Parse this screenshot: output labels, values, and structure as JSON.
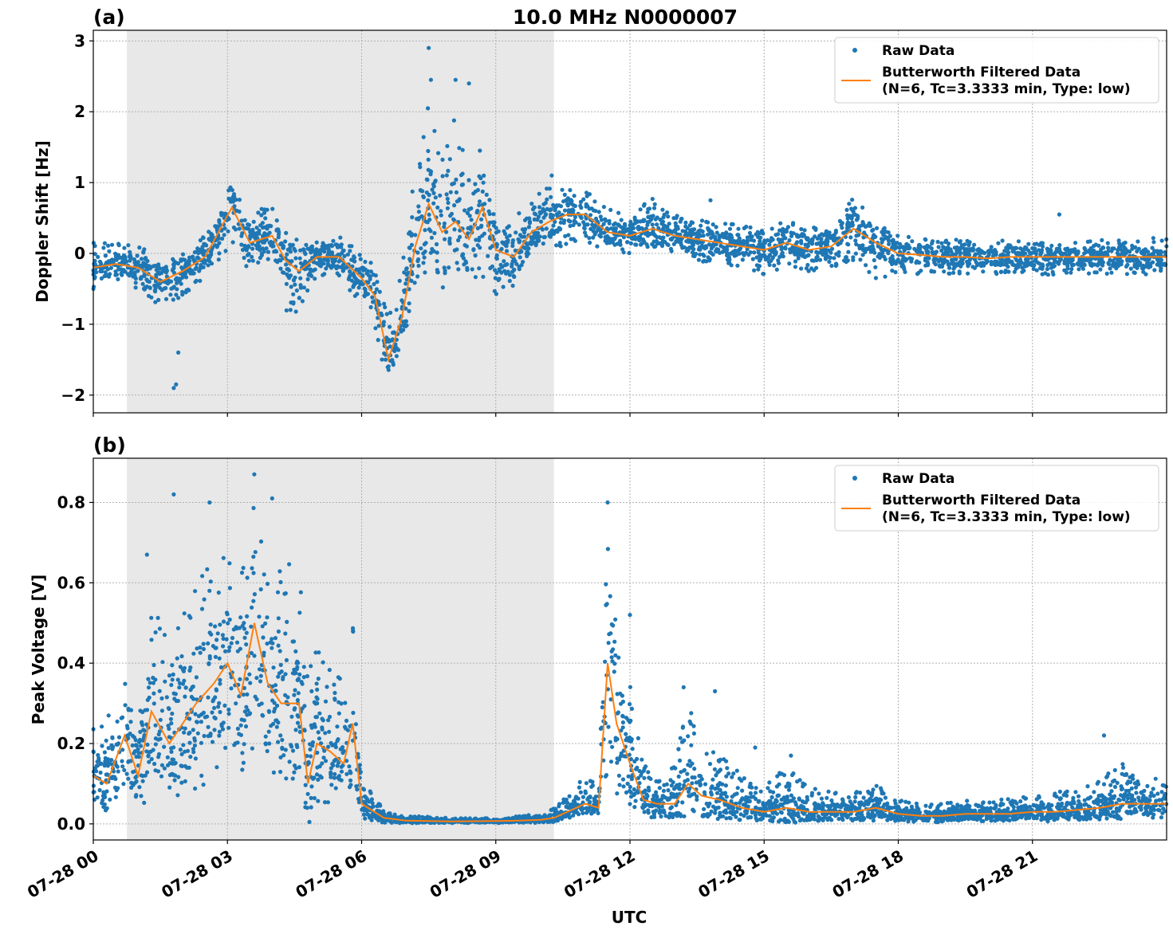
{
  "figure": {
    "suptitle": "10.0 MHz N0000007",
    "xlabel": "UTC",
    "x_tick_labels": [
      "07-28 00",
      "07-28 03",
      "07-28 06",
      "07-28 09",
      "07-28 12",
      "07-28 15",
      "07-28 18",
      "07-28 21"
    ]
  },
  "chart_data": [
    {
      "type": "scatter",
      "panel_label": "(a)",
      "ylabel": "Doppler Shift [Hz]",
      "xlim": [
        0,
        24
      ],
      "ylim": [
        -2.25,
        3.15
      ],
      "x_unit": "hours UTC",
      "x_ticks": [
        0,
        3,
        6,
        9,
        12,
        15,
        18,
        21
      ],
      "y_ticks": [
        -2,
        -1,
        0,
        1,
        2,
        3
      ],
      "y_tick_labels": [
        "−2",
        "−1",
        "0",
        "1",
        "2",
        "3"
      ],
      "shaded_interval": [
        0.75,
        10.3
      ],
      "grid": true,
      "legend_placement": "top-right",
      "legend": [
        "Raw Data",
        "Butterworth Filtered Data",
        "(N=6, Tc=3.3333 min, Type: low)"
      ],
      "colors": {
        "raw": "#1f77b4",
        "filtered": "#ff7f0e",
        "shade": "#e8e8e8"
      },
      "series": [
        {
          "name": "Butterworth Filtered Data",
          "x": [
            0,
            0.5,
            1,
            1.5,
            2,
            2.5,
            2.8,
            3.1,
            3.5,
            4,
            4.3,
            4.6,
            5,
            5.5,
            6,
            6.3,
            6.6,
            6.9,
            7.2,
            7.5,
            7.8,
            8.1,
            8.4,
            8.7,
            9,
            9.4,
            9.8,
            10.2,
            10.6,
            11,
            11.5,
            12,
            12.5,
            13,
            13.5,
            14,
            14.5,
            15,
            15.5,
            16,
            16.5,
            17,
            17.5,
            18,
            18.5,
            19,
            19.5,
            20,
            20.5,
            21,
            21.5,
            22,
            22.5,
            23,
            23.5,
            24
          ],
          "y": [
            -0.2,
            -0.15,
            -0.2,
            -0.4,
            -0.25,
            -0.05,
            0.3,
            0.65,
            0.15,
            0.25,
            -0.1,
            -0.25,
            -0.05,
            -0.05,
            -0.35,
            -0.6,
            -1.5,
            -0.9,
            0.1,
            0.7,
            0.3,
            0.45,
            0.2,
            0.65,
            0.05,
            -0.05,
            0.3,
            0.45,
            0.55,
            0.55,
            0.3,
            0.25,
            0.35,
            0.25,
            0.2,
            0.15,
            0.1,
            0.05,
            0.15,
            0.05,
            0.1,
            0.35,
            0.15,
            0.0,
            -0.02,
            -0.05,
            -0.05,
            -0.07,
            -0.05,
            -0.05,
            -0.05,
            -0.05,
            -0.05,
            -0.05,
            -0.05,
            -0.05
          ]
        },
        {
          "name": "Raw Data",
          "x": [
            0,
            0.5,
            1,
            1.5,
            2,
            2.5,
            2.8,
            3.1,
            3.5,
            4,
            4.3,
            4.6,
            5,
            5.5,
            6,
            6.3,
            6.6,
            6.9,
            7.2,
            7.5,
            7.8,
            8.1,
            8.4,
            8.7,
            9,
            9.4,
            9.8,
            10.2,
            10.6,
            11,
            11.5,
            12,
            12.5,
            13,
            13.5,
            14,
            14.5,
            15,
            15.5,
            16,
            16.5,
            17,
            17.5,
            18,
            18.5,
            19,
            19.5,
            20,
            20.5,
            21,
            21.5,
            22,
            22.5,
            23,
            23.5,
            24
          ],
          "y_low": [
            -0.5,
            -0.4,
            -0.5,
            -0.8,
            -0.6,
            -0.35,
            -0.1,
            0.1,
            -0.25,
            -0.15,
            -0.8,
            -0.9,
            -0.35,
            -0.4,
            -0.7,
            -1.1,
            -1.9,
            -1.4,
            -0.5,
            -0.3,
            -0.55,
            -0.3,
            -0.6,
            -0.5,
            -0.7,
            -0.6,
            -0.1,
            0.1,
            0.1,
            0.15,
            0.05,
            0.0,
            0.05,
            0.0,
            -0.1,
            -0.15,
            -0.2,
            -0.3,
            -0.2,
            -0.25,
            -0.2,
            -0.1,
            -0.35,
            -0.3,
            -0.3,
            -0.3,
            -0.3,
            -0.3,
            -0.3,
            -0.3,
            -0.3,
            -0.3,
            -0.3,
            -0.3,
            -0.3,
            -0.25
          ],
          "y_high": [
            0.2,
            0.15,
            0.1,
            -0.05,
            0.05,
            0.25,
            0.6,
            1.05,
            0.55,
            0.7,
            0.3,
            0.2,
            0.25,
            0.25,
            0.05,
            -0.2,
            -0.9,
            -0.1,
            1.5,
            2.1,
            1.3,
            2.2,
            1.1,
            1.6,
            0.5,
            0.5,
            0.75,
            1.0,
            0.9,
            0.9,
            0.65,
            0.55,
            0.8,
            0.55,
            0.5,
            0.45,
            0.4,
            0.35,
            0.5,
            0.35,
            0.45,
            0.8,
            0.45,
            0.25,
            0.25,
            0.2,
            0.2,
            0.15,
            0.2,
            0.15,
            0.15,
            0.15,
            0.2,
            0.2,
            0.2,
            0.25
          ]
        }
      ],
      "outliers": [
        [
          1.8,
          -1.9
        ],
        [
          1.85,
          -1.85
        ],
        [
          1.9,
          -1.4
        ],
        [
          7.5,
          2.9
        ],
        [
          7.55,
          2.45
        ],
        [
          8.1,
          2.45
        ],
        [
          8.4,
          2.4
        ],
        [
          10.25,
          1.1
        ],
        [
          13.8,
          0.75
        ],
        [
          21.6,
          0.55
        ]
      ]
    },
    {
      "type": "scatter",
      "panel_label": "(b)",
      "ylabel": "Peak Voltage [V]",
      "xlim": [
        0,
        24
      ],
      "ylim": [
        -0.04,
        0.91
      ],
      "x_unit": "hours UTC",
      "x_ticks": [
        0,
        3,
        6,
        9,
        12,
        15,
        18,
        21
      ],
      "y_ticks": [
        0.0,
        0.2,
        0.4,
        0.6,
        0.8
      ],
      "y_tick_labels": [
        "0.0",
        "0.2",
        "0.4",
        "0.6",
        "0.8"
      ],
      "shaded_interval": [
        0.75,
        10.3
      ],
      "grid": true,
      "legend_placement": "top-right",
      "legend": [
        "Raw Data",
        "Butterworth Filtered Data",
        "(N=6, Tc=3.3333 min, Type: low)"
      ],
      "colors": {
        "raw": "#1f77b4",
        "filtered": "#ff7f0e",
        "shade": "#e8e8e8"
      },
      "series": [
        {
          "name": "Butterworth Filtered Data",
          "x": [
            0,
            0.3,
            0.7,
            1,
            1.3,
            1.7,
            2,
            2.3,
            2.7,
            3,
            3.3,
            3.6,
            3.9,
            4.2,
            4.6,
            4.8,
            5,
            5.3,
            5.6,
            5.8,
            6,
            6.5,
            7,
            8,
            9,
            9.5,
            10,
            10.3,
            10.6,
            11,
            11.3,
            11.5,
            11.7,
            12,
            12.3,
            12.6,
            13,
            13.3,
            13.6,
            14,
            14.5,
            15,
            15.5,
            16,
            16.5,
            17,
            17.5,
            18,
            18.5,
            19,
            19.5,
            20,
            20.5,
            21,
            21.5,
            22,
            22.5,
            23,
            23.5,
            24
          ],
          "y": [
            0.12,
            0.1,
            0.22,
            0.12,
            0.28,
            0.2,
            0.25,
            0.3,
            0.35,
            0.4,
            0.32,
            0.5,
            0.35,
            0.3,
            0.3,
            0.1,
            0.2,
            0.18,
            0.15,
            0.25,
            0.05,
            0.015,
            0.008,
            0.006,
            0.007,
            0.008,
            0.01,
            0.015,
            0.03,
            0.05,
            0.04,
            0.4,
            0.25,
            0.15,
            0.06,
            0.05,
            0.05,
            0.1,
            0.07,
            0.06,
            0.04,
            0.03,
            0.04,
            0.03,
            0.03,
            0.03,
            0.04,
            0.025,
            0.02,
            0.02,
            0.025,
            0.025,
            0.025,
            0.03,
            0.03,
            0.035,
            0.04,
            0.05,
            0.05,
            0.05
          ]
        },
        {
          "name": "Raw Data",
          "x": [
            0,
            0.3,
            0.7,
            1,
            1.3,
            1.7,
            2,
            2.3,
            2.7,
            3,
            3.3,
            3.6,
            3.9,
            4.2,
            4.6,
            4.8,
            5,
            5.3,
            5.6,
            5.8,
            6,
            6.5,
            7,
            8,
            9,
            9.5,
            10,
            10.3,
            10.6,
            11,
            11.3,
            11.5,
            11.7,
            12,
            12.3,
            12.6,
            13,
            13.3,
            13.6,
            14,
            14.5,
            15,
            15.5,
            16,
            16.5,
            17,
            17.5,
            18,
            18.5,
            19,
            19.5,
            20,
            20.5,
            21,
            21.5,
            22,
            22.5,
            23,
            23.5,
            24
          ],
          "y_low": [
            0.03,
            0.03,
            0.05,
            0.03,
            0.06,
            0.05,
            0.06,
            0.08,
            0.12,
            0.15,
            0.12,
            0.15,
            0.1,
            0.1,
            0.08,
            0.03,
            0.05,
            0.05,
            0.04,
            0.05,
            0.01,
            0.003,
            0.002,
            0.002,
            0.002,
            0.002,
            0.003,
            0.005,
            0.01,
            0.02,
            0.02,
            0.1,
            0.06,
            0.03,
            0.01,
            0.01,
            0.01,
            0.02,
            0.015,
            0.01,
            0.008,
            0.005,
            0.008,
            0.005,
            0.005,
            0.005,
            0.008,
            0.004,
            0.004,
            0.004,
            0.005,
            0.005,
            0.005,
            0.006,
            0.006,
            0.008,
            0.01,
            0.012,
            0.015,
            0.015
          ],
          "y_high": [
            0.28,
            0.26,
            0.42,
            0.3,
            0.55,
            0.45,
            0.55,
            0.62,
            0.7,
            0.72,
            0.62,
            0.86,
            0.75,
            0.65,
            0.68,
            0.45,
            0.45,
            0.4,
            0.35,
            0.52,
            0.12,
            0.035,
            0.02,
            0.015,
            0.015,
            0.02,
            0.025,
            0.04,
            0.07,
            0.12,
            0.1,
            0.8,
            0.5,
            0.35,
            0.15,
            0.12,
            0.15,
            0.3,
            0.2,
            0.18,
            0.12,
            0.09,
            0.15,
            0.09,
            0.08,
            0.08,
            0.1,
            0.06,
            0.05,
            0.05,
            0.06,
            0.06,
            0.065,
            0.07,
            0.08,
            0.09,
            0.12,
            0.15,
            0.12,
            0.11
          ]
        }
      ],
      "outliers": [
        [
          1.2,
          0.67
        ],
        [
          1.8,
          0.82
        ],
        [
          2.6,
          0.8
        ],
        [
          3.6,
          0.87
        ],
        [
          4.0,
          0.81
        ],
        [
          11.5,
          0.8
        ],
        [
          12.0,
          0.52
        ],
        [
          13.2,
          0.34
        ],
        [
          13.9,
          0.33
        ],
        [
          14.8,
          0.19
        ],
        [
          15.6,
          0.17
        ],
        [
          22.6,
          0.22
        ]
      ]
    }
  ]
}
